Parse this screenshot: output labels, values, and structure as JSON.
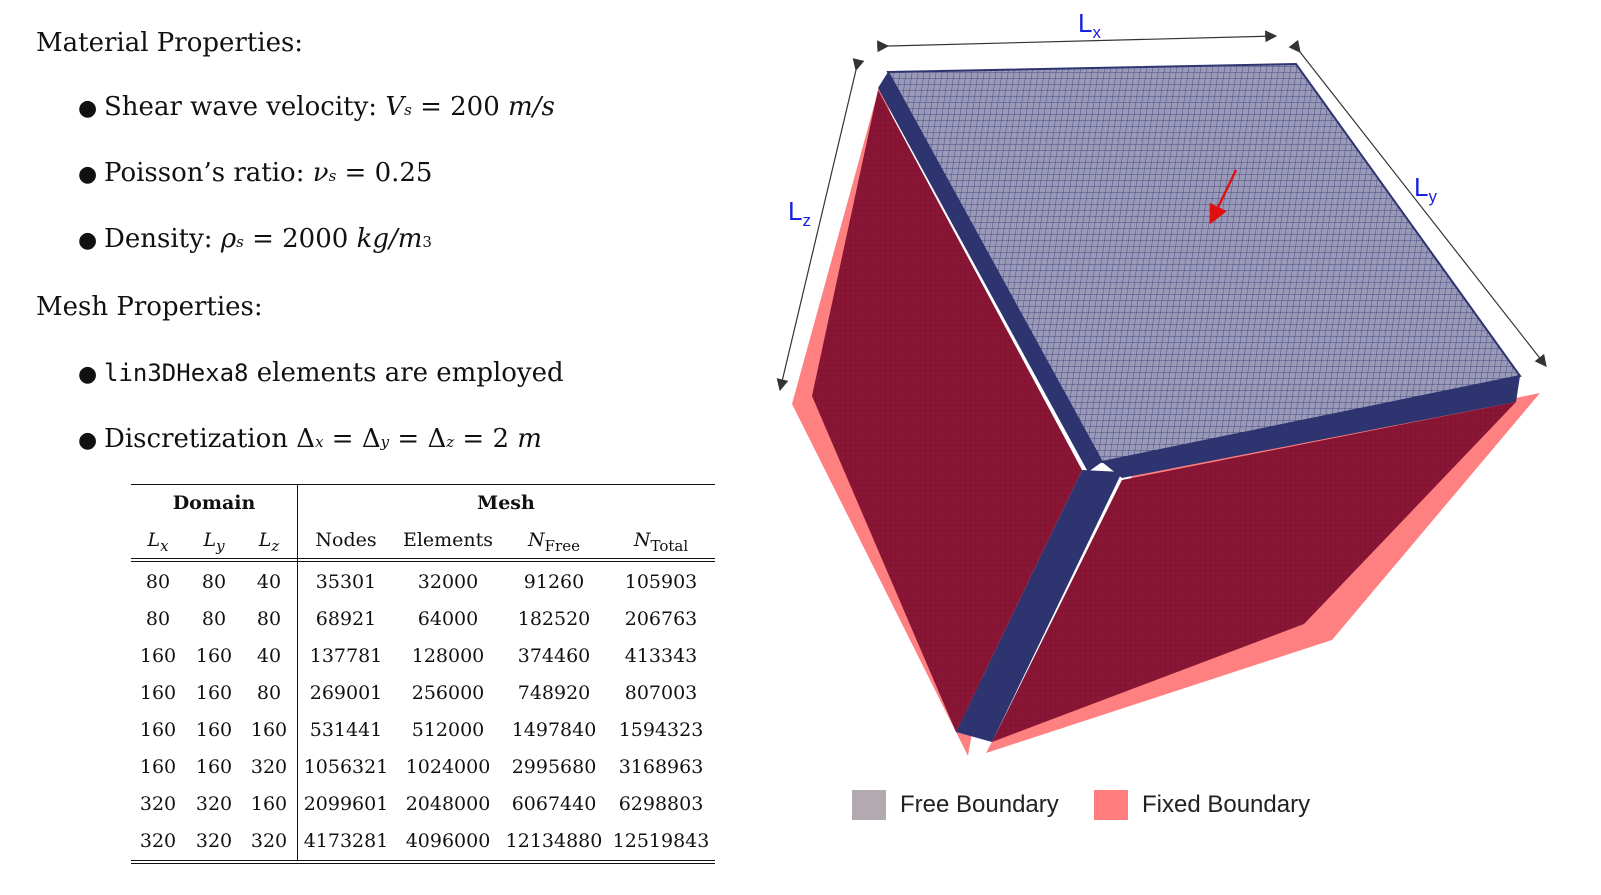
{
  "material": {
    "heading": "Material Properties:",
    "shear_label": "Shear wave velocity:",
    "shear_symbol": "V",
    "shear_sub": "s",
    "shear_value": "= 200",
    "shear_unit": "m/s",
    "poisson_label": "Poisson’s ratio:",
    "poisson_symbol": "ν",
    "poisson_sub": "s",
    "poisson_value": "= 0.25",
    "density_label": "Density:",
    "density_symbol": "ρ",
    "density_sub": "s",
    "density_value": "= 2000",
    "density_unit": "kg/m",
    "density_exp": "3"
  },
  "mesh": {
    "heading": "Mesh Properties:",
    "element_code": "lin3DHexa8",
    "element_text": "elements are employed",
    "disc_label": "Discretization",
    "disc_d": "Δ",
    "disc_x": "x",
    "disc_y": "y",
    "disc_z": "z",
    "disc_eq": "=",
    "disc_value": "= 2",
    "disc_unit": "m"
  },
  "table": {
    "group_domain": "Domain",
    "group_mesh": "Mesh",
    "col_lx": "L",
    "col_lx_sub": "x",
    "col_ly": "L",
    "col_ly_sub": "y",
    "col_lz": "L",
    "col_lz_sub": "z",
    "col_nodes": "Nodes",
    "col_elements": "Elements",
    "col_nfree": "N",
    "col_nfree_sub": "Free",
    "col_ntotal": "N",
    "col_ntotal_sub": "Total",
    "rows": [
      [
        "80",
        "80",
        "40",
        "35301",
        "32000",
        "91260",
        "105903"
      ],
      [
        "80",
        "80",
        "80",
        "68921",
        "64000",
        "182520",
        "206763"
      ],
      [
        "160",
        "160",
        "40",
        "137781",
        "128000",
        "374460",
        "413343"
      ],
      [
        "160",
        "160",
        "80",
        "269001",
        "256000",
        "748920",
        "807003"
      ],
      [
        "160",
        "160",
        "160",
        "531441",
        "512000",
        "1497840",
        "1594323"
      ],
      [
        "160",
        "160",
        "320",
        "1056321",
        "1024000",
        "2995680",
        "3168963"
      ],
      [
        "320",
        "320",
        "160",
        "2099601",
        "2048000",
        "6067440",
        "6298803"
      ],
      [
        "320",
        "320",
        "320",
        "4173281",
        "4096000",
        "12134880",
        "12519843"
      ]
    ]
  },
  "figure": {
    "lx": "L",
    "lx_sub": "x",
    "ly": "L",
    "ly_sub": "y",
    "lz": "L",
    "lz_sub": "z",
    "legend_free": "Free Boundary",
    "legend_fixed": "Fixed Boundary",
    "colors": {
      "top_face": "#9a9ab8",
      "mesh_line": "#2c2f6e",
      "side_face": "#8a1535",
      "edge_band": "#2d3470",
      "fixed_plate": "#ff6a6a",
      "free_swatch": "#b3a9b0",
      "fixed_swatch": "#ff7d7d",
      "dim_text": "#1a22e0",
      "arrow": "#e01010"
    }
  }
}
